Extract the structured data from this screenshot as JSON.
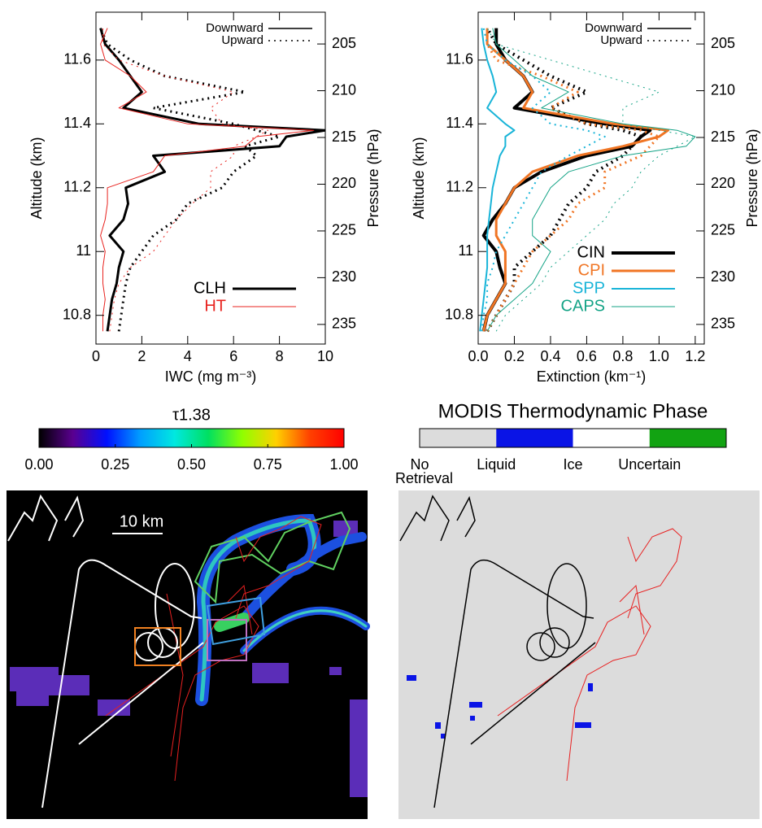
{
  "chart_data": [
    {
      "type": "profile",
      "xlabel": "IWC (mg m⁻³)",
      "ylabel": "Altitude (km)",
      "y2label": "Pressure (hPa)",
      "xlim": [
        0,
        10
      ],
      "xticks": [
        0,
        2,
        4,
        6,
        8,
        10
      ],
      "ylim": [
        10.71,
        11.75
      ],
      "yticks": [
        10.8,
        11.0,
        11.2,
        11.4,
        11.6
      ],
      "y2lim": [
        237.1,
        201.6
      ],
      "y2ticks": [
        205,
        210,
        215,
        220,
        225,
        230,
        235
      ],
      "altitude": [
        10.75,
        10.8,
        10.85,
        10.9,
        10.95,
        11.0,
        11.05,
        11.1,
        11.15,
        11.2,
        11.25,
        11.3,
        11.33,
        11.36,
        11.38,
        11.4,
        11.45,
        11.5,
        11.55,
        11.6,
        11.65,
        11.7
      ],
      "line_styles": [
        {
          "label": "Downward",
          "dash": "solid"
        },
        {
          "label": "Upward",
          "dash": "dotted"
        }
      ],
      "legend": "lower right",
      "series": [
        {
          "name": "CLH",
          "color": "#000000",
          "width": 3,
          "profiles": [
            [
              0.5,
              0.6,
              0.7,
              0.9,
              1.0,
              1.2,
              0.6,
              1.2,
              1.4,
              1.3,
              3.0,
              2.5,
              8.0,
              8.3,
              10,
              4.5,
              1.2,
              2.0,
              1.5,
              1.0,
              0.4,
              0.2
            ],
            [
              1.0,
              1.1,
              1.2,
              1.3,
              1.5,
              2.0,
              2.5,
              3.5,
              4.0,
              5.5,
              6.0,
              7.0,
              6.5,
              8.0,
              7.0,
              6.0,
              2.5,
              6.5,
              3.0,
              1.5,
              0.5,
              0.2
            ]
          ]
        },
        {
          "name": "HT",
          "color": "#e8231f",
          "width": 1,
          "profiles": [
            [
              0.3,
              0.3,
              0.4,
              0.3,
              0.3,
              0.4,
              0.2,
              0.4,
              0.5,
              0.5,
              2.5,
              3.0,
              6.5,
              7.0,
              9.5,
              4.0,
              1.0,
              2.2,
              1.5,
              0.4,
              0.2,
              0.5
            ],
            [
              0.6,
              0.7,
              0.8,
              1.0,
              1.5,
              2.5,
              3.0,
              3.5,
              4.2,
              5.0,
              5.0,
              6.0,
              6.0,
              7.0,
              7.5,
              5.5,
              5.0,
              6.0,
              3.0,
              1.0,
              0.3,
              0.3
            ]
          ]
        }
      ]
    },
    {
      "type": "profile",
      "xlabel": "Extinction (km⁻¹)",
      "ylabel": "Altitude (km)",
      "y2label": "Pressure (hPa)",
      "xlim": [
        0,
        1.25
      ],
      "xticks": [
        {
          "value": 0,
          "label": "0.0"
        },
        0.2,
        0.4,
        0.6,
        0.8,
        {
          "value": 1,
          "label": "1.0"
        },
        1.2
      ],
      "ylim": [
        10.71,
        11.75
      ],
      "yticks": [
        10.8,
        11.0,
        11.2,
        11.4,
        11.6
      ],
      "y2lim": [
        237.1,
        201.6
      ],
      "y2ticks": [
        205,
        210,
        215,
        220,
        225,
        230,
        235
      ],
      "altitude": [
        10.75,
        10.8,
        10.85,
        10.9,
        10.95,
        11.0,
        11.05,
        11.1,
        11.15,
        11.2,
        11.25,
        11.3,
        11.33,
        11.36,
        11.38,
        11.4,
        11.45,
        11.5,
        11.55,
        11.6,
        11.65,
        11.7
      ],
      "line_styles": [
        {
          "label": "Downward",
          "dash": "solid"
        },
        {
          "label": "Upward",
          "dash": "dotted"
        }
      ],
      "legend": "lower right",
      "series": [
        {
          "name": "CIN",
          "color": "#000000",
          "width": 4,
          "profiles": [
            [
              0.03,
              0.05,
              0.1,
              0.15,
              0.12,
              0.1,
              0.03,
              0.08,
              0.15,
              0.2,
              0.35,
              0.6,
              0.85,
              0.9,
              0.95,
              0.7,
              0.2,
              0.3,
              0.25,
              0.15,
              0.1,
              0.1
            ],
            [
              0.05,
              0.1,
              0.15,
              0.2,
              0.2,
              0.3,
              0.4,
              0.45,
              0.5,
              0.6,
              0.65,
              0.8,
              0.85,
              0.9,
              0.8,
              0.6,
              0.4,
              0.6,
              0.4,
              0.25,
              0.1,
              0.05
            ]
          ]
        },
        {
          "name": "CPI",
          "color": "#f07524",
          "width": 3,
          "profiles": [
            [
              0.03,
              0.05,
              0.1,
              0.15,
              0.15,
              0.15,
              0.1,
              0.1,
              0.15,
              0.2,
              0.3,
              0.55,
              0.8,
              1.0,
              1.05,
              0.75,
              0.25,
              0.3,
              0.25,
              0.15,
              0.05,
              0.05
            ],
            [
              0.05,
              0.1,
              0.15,
              0.2,
              0.25,
              0.3,
              0.4,
              0.5,
              0.55,
              0.7,
              0.7,
              0.9,
              0.95,
              1.0,
              0.9,
              0.6,
              0.4,
              0.55,
              0.35,
              0.1,
              0.05,
              0.05
            ]
          ]
        },
        {
          "name": "SPP",
          "color": "#18b4d8",
          "width": 2,
          "profiles": [
            [
              0.01,
              0.02,
              0.03,
              0.04,
              0.05,
              0.05,
              0.05,
              0.06,
              0.07,
              0.08,
              0.1,
              0.12,
              0.15,
              0.15,
              0.2,
              0.15,
              0.05,
              0.1,
              0.08,
              0.05,
              0.03,
              0.02
            ],
            [
              0.02,
              0.03,
              0.05,
              0.05,
              0.08,
              0.1,
              0.15,
              0.2,
              0.25,
              0.3,
              0.35,
              0.5,
              0.6,
              0.7,
              0.6,
              0.4,
              0.3,
              0.4,
              0.3,
              0.15,
              0.05,
              0.03
            ]
          ]
        },
        {
          "name": "CAPS",
          "color": "#14a386",
          "width": 1,
          "profiles": [
            [
              0.05,
              0.1,
              0.2,
              0.3,
              0.35,
              0.4,
              0.3,
              0.3,
              0.35,
              0.4,
              0.5,
              0.8,
              1.15,
              1.2,
              1.1,
              0.8,
              0.35,
              0.5,
              0.3,
              0.2,
              0.1,
              0.08
            ],
            [
              0.1,
              0.15,
              0.25,
              0.35,
              0.4,
              0.5,
              0.6,
              0.7,
              0.75,
              0.85,
              0.9,
              1.0,
              1.1,
              1.2,
              1.0,
              0.8,
              0.8,
              1.0,
              0.7,
              0.4,
              0.1,
              0.05
            ]
          ]
        }
      ]
    },
    {
      "type": "colorbar",
      "title": "τ1.38",
      "xlim": [
        0,
        1
      ],
      "xticks": [
        {
          "value": 0,
          "label": "0.00"
        },
        {
          "value": 0.25,
          "label": "0.25"
        },
        {
          "value": 0.5,
          "label": "0.50"
        },
        {
          "value": 0.75,
          "label": "0.75"
        },
        {
          "value": 1,
          "label": "1.00"
        }
      ],
      "colors": [
        "#000000",
        "#5a0090",
        "#0010ff",
        "#00a0ff",
        "#00e8e0",
        "#00e060",
        "#90ff00",
        "#ffd000",
        "#ff4000",
        "#ff0000"
      ]
    },
    {
      "type": "category_bar",
      "title": "MODIS Thermodynamic Phase",
      "categories": [
        "No Retrieval",
        "Liquid",
        "Ice",
        "Uncertain"
      ],
      "colors": [
        "#dcdcdc",
        "#0a14e6",
        "#ffffff",
        "#12a312"
      ]
    }
  ],
  "map": {
    "scale_label": "10 km"
  }
}
